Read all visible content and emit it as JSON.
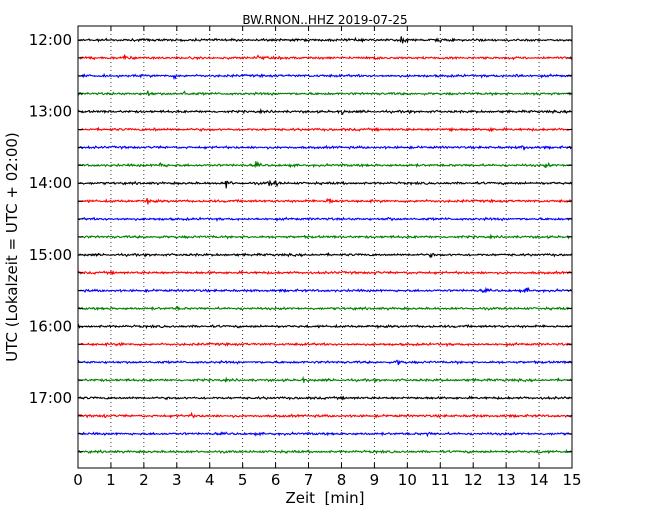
{
  "chart_data": {
    "type": "line",
    "title": "BW.RNON..HHZ 2019-07-25",
    "xlabel": "Zeit  [min]",
    "ylabel": "UTC (Lokalzeit = UTC + 02:00)",
    "xlim": [
      0,
      15
    ],
    "x_ticks": [
      "0",
      "1",
      "2",
      "3",
      "4",
      "5",
      "6",
      "7",
      "8",
      "9",
      "10",
      "11",
      "12",
      "13",
      "14",
      "15"
    ],
    "y_ticks": [
      "12:00",
      "13:00",
      "14:00",
      "15:00",
      "16:00",
      "17:00"
    ],
    "trace_interval_min": 15,
    "trace_colors": [
      "#000000",
      "#ff0000",
      "#0000ff",
      "#008000"
    ],
    "grid": "vertical dotted lines at each minute",
    "traces": [
      {
        "start": "12:00",
        "color": "#000000",
        "events": [
          {
            "t": 9.8,
            "amp": 1.6
          },
          {
            "t": 10.9,
            "amp": 0.5
          },
          {
            "t": 8.3,
            "amp": 0.4
          }
        ]
      },
      {
        "start": "12:15",
        "color": "#ff0000",
        "events": [
          {
            "t": 1.4,
            "amp": 0.6
          },
          {
            "t": 5.4,
            "amp": 0.6
          },
          {
            "t": 9.0,
            "amp": 0.5
          }
        ]
      },
      {
        "start": "12:30",
        "color": "#0000ff",
        "events": [
          {
            "t": 2.9,
            "amp": 0.4
          },
          {
            "t": 13.3,
            "amp": 0.5
          }
        ]
      },
      {
        "start": "12:45",
        "color": "#008000",
        "events": [
          {
            "t": 2.1,
            "amp": 0.7
          },
          {
            "t": 3.2,
            "amp": 0.5
          },
          {
            "t": 14.0,
            "amp": 0.4
          }
        ]
      },
      {
        "start": "13:00",
        "color": "#000000",
        "events": [
          {
            "t": 8.0,
            "amp": 0.4
          }
        ]
      },
      {
        "start": "13:15",
        "color": "#ff0000",
        "events": [
          {
            "t": 2.3,
            "amp": 0.3
          },
          {
            "t": 11.3,
            "amp": 0.3
          },
          {
            "t": 12.5,
            "amp": 0.4
          }
        ]
      },
      {
        "start": "13:30",
        "color": "#0000ff",
        "events": [
          {
            "t": 13.5,
            "amp": 0.7
          }
        ]
      },
      {
        "start": "13:45",
        "color": "#008000",
        "events": [
          {
            "t": 2.5,
            "amp": 0.8
          },
          {
            "t": 5.4,
            "amp": 0.4
          },
          {
            "t": 14.2,
            "amp": 0.4
          }
        ]
      },
      {
        "start": "14:00",
        "color": "#000000",
        "events": [
          {
            "t": 4.5,
            "amp": 1.0
          },
          {
            "t": 5.8,
            "amp": 0.6
          },
          {
            "t": 6.0,
            "amp": 0.5
          }
        ]
      },
      {
        "start": "14:15",
        "color": "#ff0000",
        "events": [
          {
            "t": 7.6,
            "amp": 1.4
          },
          {
            "t": 2.1,
            "amp": 0.4
          },
          {
            "t": 10.4,
            "amp": 0.3
          }
        ]
      },
      {
        "start": "14:30",
        "color": "#0000ff",
        "events": [
          {
            "t": 9.4,
            "amp": 0.3
          }
        ]
      },
      {
        "start": "14:45",
        "color": "#008000",
        "events": [
          {
            "t": 5.2,
            "amp": 0.2
          }
        ]
      },
      {
        "start": "15:00",
        "color": "#000000",
        "events": [
          {
            "t": 10.7,
            "amp": 0.3
          }
        ]
      },
      {
        "start": "15:15",
        "color": "#ff0000",
        "events": [
          {
            "t": 9.0,
            "amp": 0.2
          }
        ]
      },
      {
        "start": "15:30",
        "color": "#0000ff",
        "events": [
          {
            "t": 13.6,
            "amp": 0.5
          },
          {
            "t": 12.3,
            "amp": 0.3
          }
        ]
      },
      {
        "start": "15:45",
        "color": "#008000",
        "events": [
          {
            "t": 3.0,
            "amp": 0.2
          }
        ]
      },
      {
        "start": "16:00",
        "color": "#000000",
        "events": []
      },
      {
        "start": "16:15",
        "color": "#ff0000",
        "events": [
          {
            "t": 1.3,
            "amp": 0.3
          }
        ]
      },
      {
        "start": "16:30",
        "color": "#0000ff",
        "events": [
          {
            "t": 9.7,
            "amp": 0.6
          }
        ]
      },
      {
        "start": "16:45",
        "color": "#008000",
        "events": [
          {
            "t": 6.8,
            "amp": 0.5
          }
        ]
      },
      {
        "start": "17:00",
        "color": "#000000",
        "events": []
      },
      {
        "start": "17:15",
        "color": "#ff0000",
        "events": [
          {
            "t": 0.8,
            "amp": 0.3
          },
          {
            "t": 3.4,
            "amp": 0.4
          }
        ]
      },
      {
        "start": "17:30",
        "color": "#0000ff",
        "events": [
          {
            "t": 10.6,
            "amp": 0.3
          }
        ]
      },
      {
        "start": "17:45",
        "color": "#008000",
        "events": [
          {
            "t": 14.0,
            "amp": 0.3
          }
        ]
      }
    ]
  }
}
